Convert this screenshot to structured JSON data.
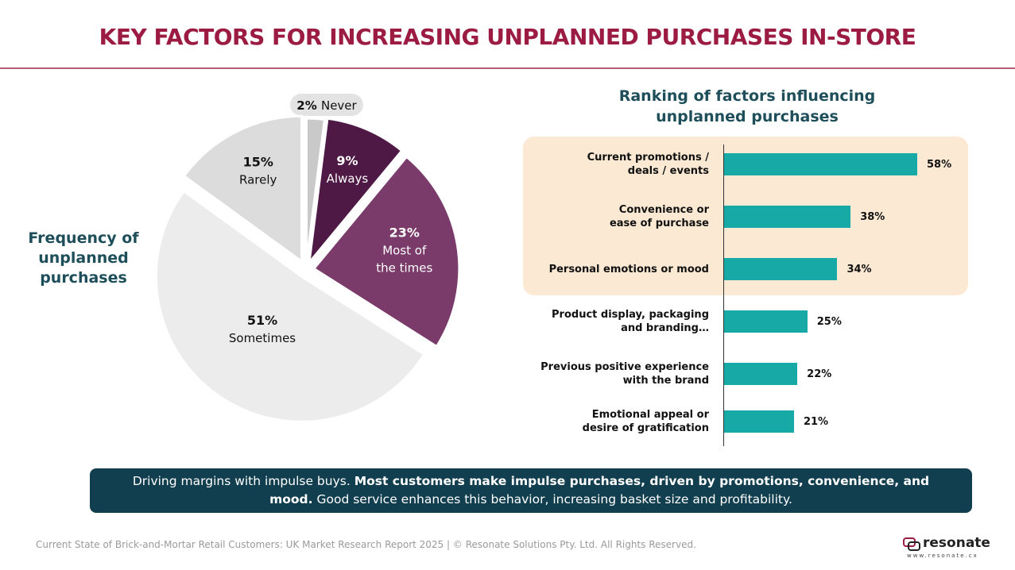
{
  "title": "KEY FACTORS FOR INCREASING UNPLANNED PURCHASES IN-STORE",
  "pie_side_title": [
    "Frequency of",
    "unplanned",
    "purchases"
  ],
  "bar_title": [
    "Ranking of factors influencing",
    "unplanned purchases"
  ],
  "colors": {
    "title": "#9b1b43",
    "heading": "#1d4e5a",
    "bar": "#17a9a6",
    "highlight": "#fbe9d3",
    "banner": "#123f4f"
  },
  "chart_data": [
    {
      "type": "pie",
      "title": "Frequency of unplanned purchases",
      "slices": [
        {
          "label": "Never",
          "value": 2,
          "pct_label": "2%",
          "color": "#c9c9c9"
        },
        {
          "label": "Always",
          "value": 9,
          "pct_label": "9%",
          "color": "#4e1a45"
        },
        {
          "label_lines": [
            "Most of",
            "the times"
          ],
          "label": "Most of the times",
          "value": 23,
          "pct_label": "23%",
          "color": "#7a3b6b"
        },
        {
          "label": "Sometimes",
          "value": 51,
          "pct_label": "51%",
          "color": "#ececec"
        },
        {
          "label": "Rarely",
          "value": 15,
          "pct_label": "15%",
          "color": "#dcdcdc"
        }
      ]
    },
    {
      "type": "bar",
      "orientation": "horizontal",
      "title": "Ranking of factors influencing unplanned purchases",
      "categories": [
        [
          "Current promotions /",
          "deals / events"
        ],
        [
          "Convenience or",
          "ease of purchase"
        ],
        [
          "Personal emotions or mood"
        ],
        [
          "Product display, packaging",
          "and branding…"
        ],
        [
          "Previous positive experience",
          "with the brand"
        ],
        [
          "Emotional appeal or",
          "desire of gratification"
        ]
      ],
      "values": [
        58,
        38,
        34,
        25,
        22,
        21
      ],
      "value_labels": [
        "58%",
        "38%",
        "34%",
        "25%",
        "22%",
        "21%"
      ],
      "highlighted_top": 3
    }
  ],
  "summary": {
    "lead": "Driving margins with impulse buys. ",
    "bold": "Most customers make impulse purchases, driven by promotions, convenience, and mood.",
    "tail": " Good service enhances this behavior, increasing basket size and profitability."
  },
  "footer": "Current State of Brick-and-Mortar Retail Customers: UK Market Research Report 2025 | © Resonate Solutions Pty. Ltd. All Rights Reserved.",
  "logo": {
    "word": "resonate",
    "url": "www.resonate.cx",
    "icon": "chat-bubble-icon"
  }
}
